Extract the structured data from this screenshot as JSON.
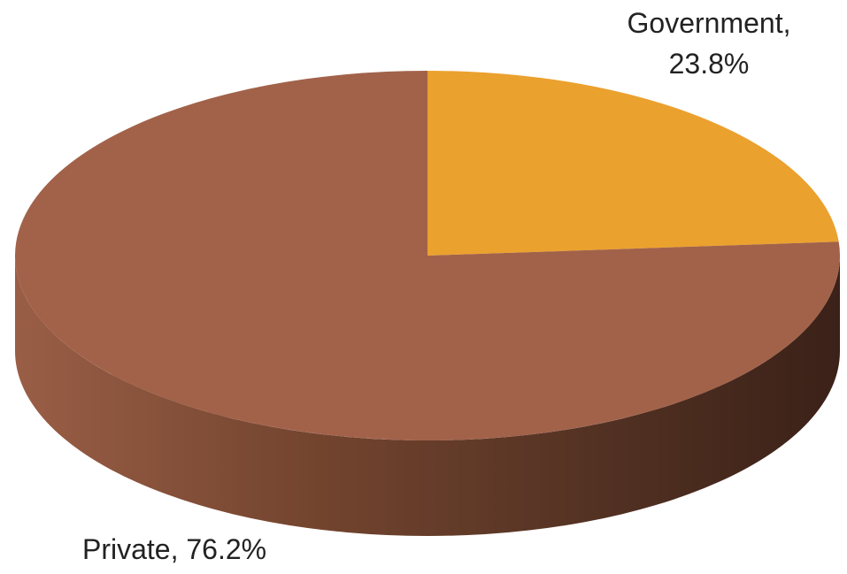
{
  "chart_data": {
    "type": "pie",
    "style": "3d",
    "title": "",
    "slices": [
      {
        "label": "Government",
        "value": 23.8,
        "display": "23.8%",
        "color": "#eba12e"
      },
      {
        "label": "Private",
        "value": 76.2,
        "display": "76.2%",
        "color": "#a2624a"
      }
    ],
    "legend": "none",
    "data_labels": "outside"
  }
}
